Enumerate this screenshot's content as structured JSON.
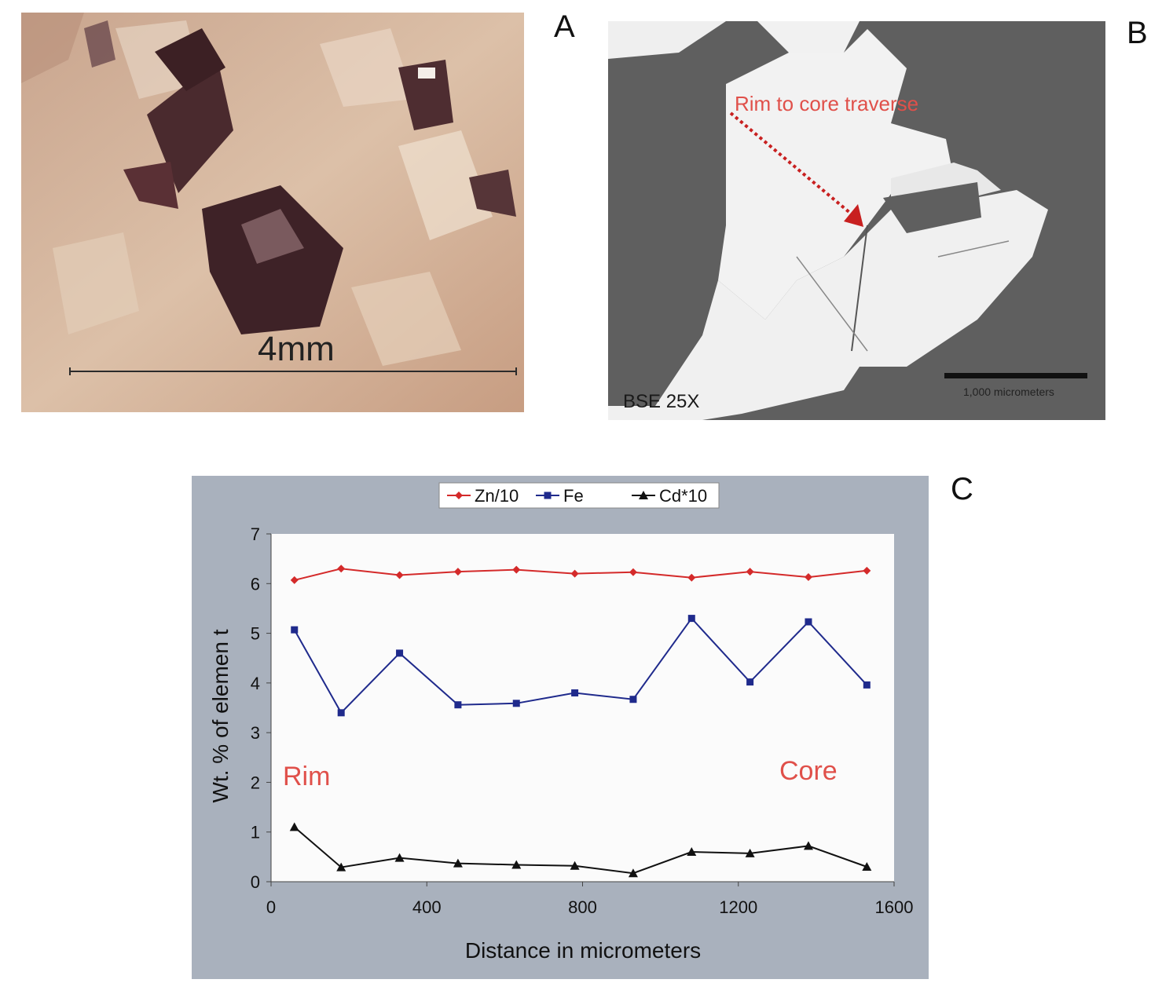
{
  "panels": {
    "a": {
      "letter": "A",
      "scale_text": "4mm"
    },
    "b": {
      "letter": "B",
      "traverse_label": "Rim to core traverse",
      "mode_label": "BSE 25X",
      "scale_text": "1,000 micrometers"
    },
    "c": {
      "letter": "C"
    }
  },
  "colors": {
    "zn": "#d42a2a",
    "fe": "#1f2a8c",
    "cd": "#111111",
    "chart_frame": "#a9b1bd",
    "plot_bg": "#fbfbfb",
    "annotation": "#e0504a"
  },
  "chart_data": {
    "type": "line",
    "title": "",
    "xlabel": "Distance in micrometers",
    "ylabel": "Wt. % of elemen t",
    "xlim": [
      0,
      1600
    ],
    "ylim": [
      0,
      7
    ],
    "xticks": [
      "0",
      "400",
      "800",
      "1200",
      "1600"
    ],
    "yticks": [
      "0",
      "1",
      "2",
      "3",
      "4",
      "5",
      "6",
      "7"
    ],
    "grid": false,
    "legend_position": "top-center",
    "annotations": [
      "Rim",
      "Core"
    ],
    "x": [
      60,
      180,
      330,
      480,
      630,
      780,
      930,
      1080,
      1230,
      1380,
      1530
    ],
    "series": [
      {
        "name": "Zn/10",
        "marker": "diamond",
        "color": "#d42a2a",
        "values": [
          6.07,
          6.3,
          6.17,
          6.24,
          6.28,
          6.2,
          6.23,
          6.12,
          6.24,
          6.13,
          6.26
        ]
      },
      {
        "name": "Fe",
        "marker": "square",
        "color": "#1f2a8c",
        "values": [
          5.07,
          3.4,
          4.6,
          3.56,
          3.59,
          3.8,
          3.67,
          5.3,
          4.02,
          5.23,
          3.96
        ]
      },
      {
        "name": "Cd*10",
        "marker": "triangle",
        "color": "#111111",
        "values": [
          1.1,
          0.29,
          0.48,
          0.37,
          0.34,
          0.32,
          0.17,
          0.6,
          0.57,
          0.72,
          0.3
        ]
      }
    ]
  }
}
